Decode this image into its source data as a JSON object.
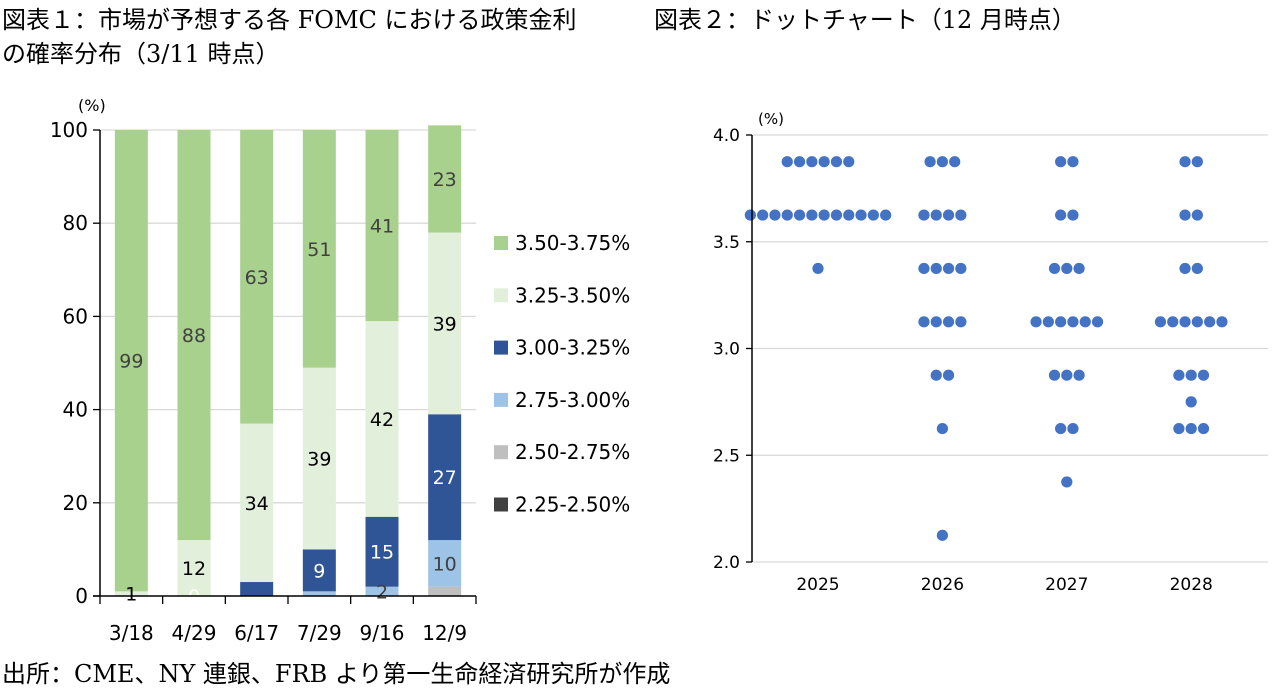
{
  "page": {
    "title1_line1": "図表１：市場が予想する各 FOMC における政策金利",
    "title1_line2": "の確率分布（3/11 時点）",
    "title2": "図表２：ドットチャート（12 月時点）",
    "footer": "出所：CME、NY 連銀、FRB より第一生命経済研究所が作成"
  },
  "chart_data": [
    {
      "type": "bar",
      "stacked": true,
      "title": "市場が予想する各 FOMC における政策金利の確率分布（3/11 時点）",
      "ylabel": "(%)",
      "xlabel": "",
      "ylim": [
        0,
        100
      ],
      "yticks": [
        0,
        20,
        40,
        60,
        80,
        100
      ],
      "grid": true,
      "legend_position": "right",
      "categories": [
        "3/18",
        "4/29",
        "6/17",
        "7/29",
        "9/16",
        "12/9"
      ],
      "series": [
        {
          "name": "2.25-2.50%",
          "color": "#404040",
          "label_color": "#ffffff",
          "values": [
            0,
            0,
            0,
            0,
            0,
            0
          ],
          "labels": [
            null,
            null,
            null,
            null,
            null,
            null
          ]
        },
        {
          "name": "2.50-2.75%",
          "color": "#bfbfbf",
          "label_color": "#404040",
          "values": [
            0,
            0,
            0,
            0,
            0,
            2
          ],
          "labels": [
            null,
            null,
            null,
            null,
            null,
            null
          ]
        },
        {
          "name": "2.75-3.00%",
          "color": "#9dc3e6",
          "label_color": "#404040",
          "values": [
            0,
            0,
            0,
            1,
            2,
            10
          ],
          "labels": [
            null,
            null,
            null,
            null,
            "2",
            "10"
          ]
        },
        {
          "name": "3.00-3.25%",
          "color": "#2f5597",
          "label_color": "#ffffff",
          "values": [
            0,
            0,
            3,
            9,
            15,
            27
          ],
          "labels": [
            null,
            "0",
            null,
            "9",
            "15",
            "27"
          ]
        },
        {
          "name": "3.25-3.50%",
          "color": "#e2efda",
          "label_color": "#000000",
          "values": [
            1,
            12,
            34,
            39,
            42,
            39
          ],
          "labels": [
            "1",
            "12",
            "34",
            "39",
            "42",
            "39"
          ]
        },
        {
          "name": "3.50-3.75%",
          "color": "#a9d18e",
          "label_color": "#404040",
          "values": [
            99,
            88,
            63,
            51,
            41,
            23
          ],
          "labels": [
            "99",
            "88",
            "63",
            "51",
            "41",
            "23"
          ]
        }
      ],
      "legend_order": [
        "3.50-3.75%",
        "3.25-3.50%",
        "3.00-3.25%",
        "2.75-3.00%",
        "2.50-2.75%",
        "2.25-2.50%"
      ]
    },
    {
      "type": "scatter",
      "title": "ドットチャート（12 月時点）",
      "ylabel": "(%)",
      "xlabel": "",
      "ylim": [
        2.0,
        4.0
      ],
      "yticks": [
        "2.0",
        "2.5",
        "3.0",
        "3.5",
        "4.0"
      ],
      "grid": true,
      "dot_color": "#4472c4",
      "categories": [
        "2025",
        "2026",
        "2027",
        "2028"
      ],
      "dots": [
        {
          "year": "2025",
          "levels": [
            {
              "rate": 3.875,
              "count": 6
            },
            {
              "rate": 3.625,
              "count": 12
            },
            {
              "rate": 3.375,
              "count": 1
            }
          ]
        },
        {
          "year": "2026",
          "levels": [
            {
              "rate": 3.875,
              "count": 3
            },
            {
              "rate": 3.625,
              "count": 4
            },
            {
              "rate": 3.375,
              "count": 4
            },
            {
              "rate": 3.125,
              "count": 4
            },
            {
              "rate": 2.875,
              "count": 2
            },
            {
              "rate": 2.625,
              "count": 1
            },
            {
              "rate": 2.125,
              "count": 1
            }
          ]
        },
        {
          "year": "2027",
          "levels": [
            {
              "rate": 3.875,
              "count": 2
            },
            {
              "rate": 3.625,
              "count": 2
            },
            {
              "rate": 3.375,
              "count": 3
            },
            {
              "rate": 3.125,
              "count": 6
            },
            {
              "rate": 2.875,
              "count": 3
            },
            {
              "rate": 2.625,
              "count": 2
            },
            {
              "rate": 2.375,
              "count": 1
            }
          ]
        },
        {
          "year": "2028",
          "levels": [
            {
              "rate": 3.875,
              "count": 2
            },
            {
              "rate": 3.625,
              "count": 2
            },
            {
              "rate": 3.375,
              "count": 2
            },
            {
              "rate": 3.125,
              "count": 6
            },
            {
              "rate": 2.875,
              "count": 3
            },
            {
              "rate": 2.75,
              "count": 1
            },
            {
              "rate": 2.625,
              "count": 3
            }
          ]
        }
      ]
    }
  ]
}
